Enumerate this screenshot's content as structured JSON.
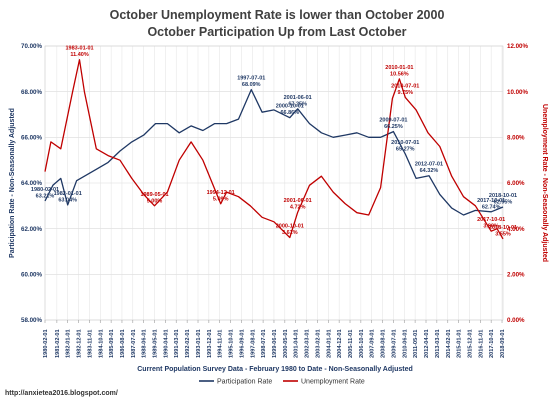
{
  "chart_data": {
    "type": "line",
    "title": "October Unemployment Rate is lower than October 2000",
    "subtitle": "October Participation Up from Last October",
    "xlabel": "Current Population Survey Data - February 1980 to Date - Non-Seasonally Adjusted",
    "ylabel_left": "Participation Rate - Non-Seasonally Adjusted",
    "ylabel_right": "Unemployment Rate - Non-Seasonally Adjusted",
    "ylim_left": [
      58,
      70
    ],
    "ylim_right": [
      0,
      12
    ],
    "yticks_left": [
      "58.00%",
      "60.00%",
      "62.00%",
      "64.00%",
      "66.00%",
      "68.00%",
      "70.00%"
    ],
    "yticks_right": [
      "0.00%",
      "2.00%",
      "4.00%",
      "6.00%",
      "8.00%",
      "10.00%",
      "12.00%"
    ],
    "xticks": [
      "1980-02-01",
      "1981-02-01",
      "1982-01-01",
      "1982-12-01",
      "1983-11-01",
      "1984-10-01",
      "1985-09-01",
      "1986-08-01",
      "1987-07-01",
      "1988-06-01",
      "1989-05-01",
      "1990-04-01",
      "1991-03-01",
      "1992-02-01",
      "1993-01-01",
      "1993-12-01",
      "1994-11-01",
      "1995-10-01",
      "1996-09-01",
      "1997-08-01",
      "1998-07-01",
      "1999-06-01",
      "2000-05-01",
      "2001-04-01",
      "2002-03-01",
      "2003-02-01",
      "2004-01-01",
      "2004-12-01",
      "2005-11-01",
      "2006-10-01",
      "2007-09-01",
      "2008-08-01",
      "2009-07-01",
      "2010-06-01",
      "2011-05-01",
      "2012-04-01",
      "2013-03-01",
      "2014-02-01",
      "2015-01-01",
      "2015-12-01",
      "2016-11-01",
      "2017-10-01",
      "2018-09-01"
    ],
    "legend_position": "bottom",
    "grid": true,
    "series": [
      {
        "name": "Participation Rate",
        "color": "#1f3864",
        "axis": "left",
        "points": [
          [
            "1980-02-01",
            63.21
          ],
          [
            "1980-10-01",
            63.9
          ],
          [
            "1981-06-01",
            64.2
          ],
          [
            "1982-01-01",
            63.04
          ],
          [
            "1982-10-01",
            64.1
          ],
          [
            "1983-06-01",
            64.3
          ],
          [
            "1984-06-01",
            64.6
          ],
          [
            "1985-06-01",
            64.9
          ],
          [
            "1986-06-01",
            65.4
          ],
          [
            "1987-06-01",
            65.8
          ],
          [
            "1988-06-01",
            66.1
          ],
          [
            "1989-06-01",
            66.6
          ],
          [
            "1990-06-01",
            66.6
          ],
          [
            "1991-06-01",
            66.2
          ],
          [
            "1992-06-01",
            66.5
          ],
          [
            "1993-06-01",
            66.3
          ],
          [
            "1994-06-01",
            66.6
          ],
          [
            "1995-06-01",
            66.6
          ],
          [
            "1996-06-01",
            66.8
          ],
          [
            "1997-07-01",
            68.09
          ],
          [
            "1998-06-01",
            67.1
          ],
          [
            "1999-06-01",
            67.2
          ],
          [
            "2000-10-01",
            66.86
          ],
          [
            "2001-06-01",
            67.25
          ],
          [
            "2002-06-01",
            66.6
          ],
          [
            "2003-06-01",
            66.2
          ],
          [
            "2004-06-01",
            66.0
          ],
          [
            "2005-06-01",
            66.1
          ],
          [
            "2006-06-01",
            66.2
          ],
          [
            "2007-06-01",
            66.0
          ],
          [
            "2008-06-01",
            66.0
          ],
          [
            "2009-07-01",
            66.25
          ],
          [
            "2010-07-01",
            65.27
          ],
          [
            "2011-06-01",
            64.2
          ],
          [
            "2012-07-01",
            64.32
          ],
          [
            "2013-06-01",
            63.5
          ],
          [
            "2014-06-01",
            62.9
          ],
          [
            "2015-06-01",
            62.6
          ],
          [
            "2016-06-01",
            62.8
          ],
          [
            "2017-10-01",
            62.74
          ],
          [
            "2018-10-01",
            62.95
          ]
        ]
      },
      {
        "name": "Unemployment Rate",
        "color": "#c00000",
        "axis": "right",
        "points": [
          [
            "1980-02-01",
            6.5
          ],
          [
            "1980-08-01",
            7.8
          ],
          [
            "1981-06-01",
            7.5
          ],
          [
            "1982-06-01",
            10.0
          ],
          [
            "1983-01-01",
            11.4
          ],
          [
            "1983-06-01",
            10.0
          ],
          [
            "1984-06-01",
            7.5
          ],
          [
            "1985-06-01",
            7.2
          ],
          [
            "1986-06-01",
            7.0
          ],
          [
            "1987-06-01",
            6.2
          ],
          [
            "1988-06-01",
            5.5
          ],
          [
            "1989-05-01",
            5.0
          ],
          [
            "1990-06-01",
            5.6
          ],
          [
            "1991-06-01",
            7.0
          ],
          [
            "1992-06-01",
            7.8
          ],
          [
            "1993-06-01",
            7.0
          ],
          [
            "1994-12-01",
            5.09
          ],
          [
            "1995-06-01",
            5.6
          ],
          [
            "1996-06-01",
            5.4
          ],
          [
            "1997-06-01",
            5.0
          ],
          [
            "1998-06-01",
            4.5
          ],
          [
            "1999-06-01",
            4.3
          ],
          [
            "2000-10-01",
            3.61
          ],
          [
            "2001-06-01",
            4.72
          ],
          [
            "2002-06-01",
            5.9
          ],
          [
            "2003-06-01",
            6.3
          ],
          [
            "2004-06-01",
            5.6
          ],
          [
            "2005-06-01",
            5.1
          ],
          [
            "2006-06-01",
            4.7
          ],
          [
            "2007-06-01",
            4.6
          ],
          [
            "2008-06-01",
            5.8
          ],
          [
            "2009-06-01",
            9.7
          ],
          [
            "2010-01-01",
            10.56
          ],
          [
            "2010-07-01",
            9.75
          ],
          [
            "2011-06-01",
            9.2
          ],
          [
            "2012-06-01",
            8.2
          ],
          [
            "2013-06-01",
            7.6
          ],
          [
            "2014-06-01",
            6.3
          ],
          [
            "2015-06-01",
            5.4
          ],
          [
            "2016-06-01",
            5.0
          ],
          [
            "2017-10-01",
            3.89
          ],
          [
            "2018-04-01",
            4.0
          ],
          [
            "2018-10-01",
            3.55
          ]
        ]
      }
    ],
    "annotations": [
      {
        "series": "Participation Rate",
        "date": "1980-02-01",
        "value": 63.21,
        "lines": [
          "1980-02-01",
          "63.21%"
        ]
      },
      {
        "series": "Participation Rate",
        "date": "1982-01-01",
        "value": 63.04,
        "lines": [
          "1982-01-01",
          "63.04%"
        ]
      },
      {
        "series": "Participation Rate",
        "date": "1997-07-01",
        "value": 68.09,
        "lines": [
          "1997-07-01",
          "68.09%"
        ]
      },
      {
        "series": "Participation Rate",
        "date": "2000-10-01",
        "value": 66.86,
        "lines": [
          "2000-10-01",
          "66.86%"
        ]
      },
      {
        "series": "Participation Rate",
        "date": "2001-06-01",
        "value": 67.25,
        "lines": [
          "2001-06-01",
          "67.25%"
        ]
      },
      {
        "series": "Participation Rate",
        "date": "2009-07-01",
        "value": 66.25,
        "lines": [
          "2009-07-01",
          "66.25%"
        ]
      },
      {
        "series": "Participation Rate",
        "date": "2010-07-01",
        "value": 65.27,
        "lines": [
          "2010-07-01",
          "65.27%"
        ]
      },
      {
        "series": "Participation Rate",
        "date": "2012-07-01",
        "value": 64.32,
        "lines": [
          "2012-07-01",
          "64.32%"
        ]
      },
      {
        "series": "Participation Rate",
        "date": "2017-10-01",
        "value": 62.74,
        "lines": [
          "2017-10-01",
          "62.74%"
        ]
      },
      {
        "series": "Participation Rate",
        "date": "2018-10-01",
        "value": 62.95,
        "lines": [
          "2018-10-01",
          "62.95%"
        ]
      },
      {
        "series": "Unemployment Rate",
        "date": "1983-01-01",
        "value": 11.4,
        "lines": [
          "1983-01-01",
          "11.40%"
        ]
      },
      {
        "series": "Unemployment Rate",
        "date": "1989-05-01",
        "value": 5.0,
        "lines": [
          "1989-05-01",
          "5.00%"
        ]
      },
      {
        "series": "Unemployment Rate",
        "date": "1994-12-01",
        "value": 5.09,
        "lines": [
          "1994-12-01",
          "5.09%"
        ]
      },
      {
        "series": "Unemployment Rate",
        "date": "2000-10-01",
        "value": 3.61,
        "lines": [
          "2000-10-01",
          "3.61%"
        ]
      },
      {
        "series": "Unemployment Rate",
        "date": "2001-06-01",
        "value": 4.72,
        "lines": [
          "2001-06-01",
          "4.72%"
        ]
      },
      {
        "series": "Unemployment Rate",
        "date": "2010-01-01",
        "value": 10.56,
        "lines": [
          "2010-01-01",
          "10.56%"
        ]
      },
      {
        "series": "Unemployment Rate",
        "date": "2010-07-01",
        "value": 9.75,
        "lines": [
          "2010-07-01",
          "9.75%"
        ]
      },
      {
        "series": "Unemployment Rate",
        "date": "2017-10-01",
        "value": 3.89,
        "lines": [
          "2017-10-01",
          "3.89%"
        ]
      },
      {
        "series": "Unemployment Rate",
        "date": "2018-10-01",
        "value": 3.55,
        "lines": [
          "2018-10-01",
          "3.55%"
        ]
      }
    ]
  },
  "footer": {
    "source_url": "http://anxietea2016.blogspot.com/"
  }
}
